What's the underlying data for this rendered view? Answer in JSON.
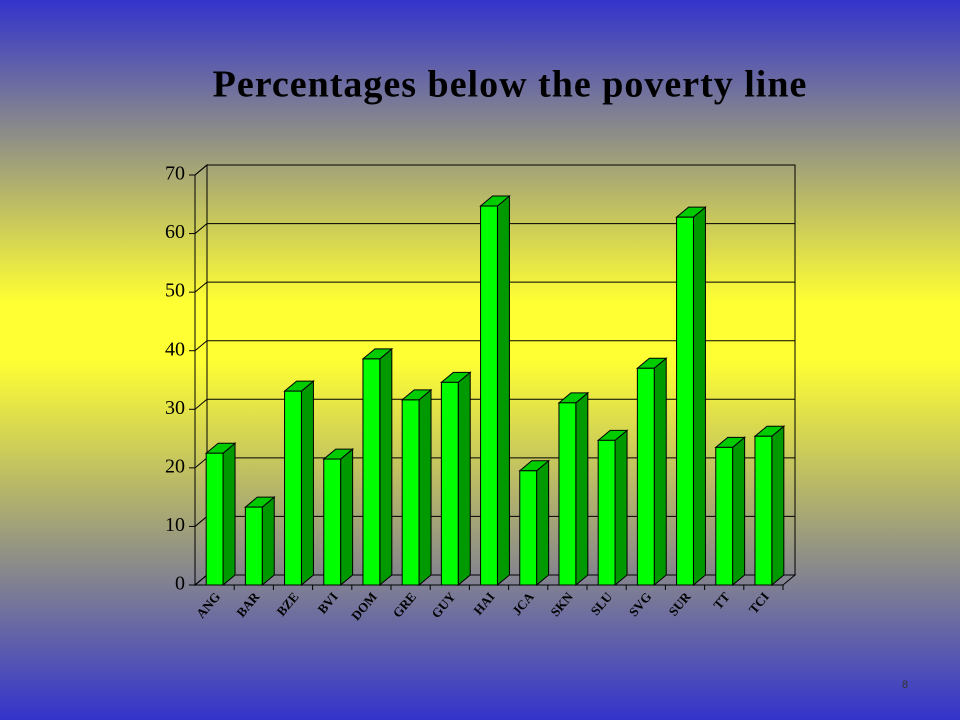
{
  "chart_data": {
    "type": "bar3d",
    "title": "Percentages below the poverty line",
    "categories": [
      "ANG",
      "BAR",
      "BZE",
      "BVI",
      "DOM",
      "GRE",
      "GUY",
      "HAI",
      "JCA",
      "SKN",
      "SLU",
      "SVG",
      "SUR",
      "TT",
      "TCI"
    ],
    "values": [
      22.5,
      13.3,
      33.1,
      21.5,
      38.6,
      31.6,
      34.6,
      64.7,
      19.5,
      31.1,
      24.7,
      37,
      62.8,
      23.5,
      25.4
    ],
    "color": "#00ff00",
    "ylim": [
      0,
      70
    ],
    "yticks": [
      0,
      10,
      20,
      30,
      40,
      50,
      60,
      70
    ],
    "grid": true
  },
  "page_number": 8
}
